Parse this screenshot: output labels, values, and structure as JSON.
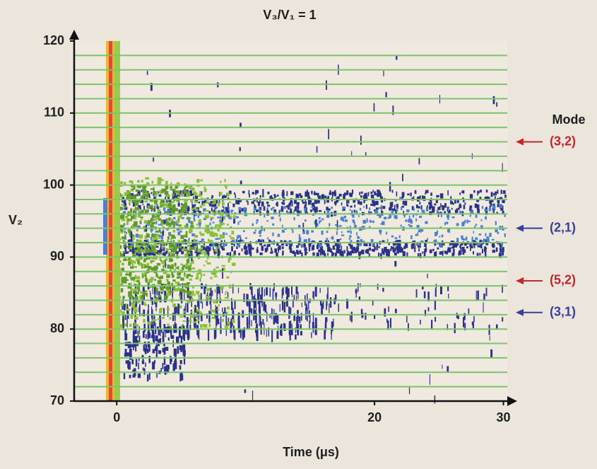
{
  "chart_data": {
    "type": "density",
    "title": "V₃/V₁ = 1",
    "xlabel": "Time (μs)",
    "ylabel": "V₂",
    "xlim": [
      -3.3,
      30.3
    ],
    "ylim": [
      70,
      120
    ],
    "xticks": [
      0,
      20,
      30
    ],
    "yticks": [
      70,
      80,
      90,
      100,
      110,
      120
    ],
    "hlines": [
      72,
      74,
      76,
      78,
      80,
      82,
      84,
      86,
      88,
      90,
      92,
      94,
      96,
      98,
      100,
      102,
      104,
      106,
      108,
      110,
      112,
      114,
      116,
      118
    ],
    "hline_color": "#7dc36b",
    "legend_title": "Mode",
    "annotations": [
      {
        "label": "(3,2)",
        "y": 106,
        "color": "#c4262e"
      },
      {
        "label": "(2,1)",
        "y": 94,
        "color": "#3a3f9a"
      },
      {
        "label": "(5,2)",
        "y": 86.7,
        "color": "#c4262e"
      },
      {
        "label": "(3,1)",
        "y": 82.3,
        "color": "#3a3f9a"
      }
    ]
  }
}
